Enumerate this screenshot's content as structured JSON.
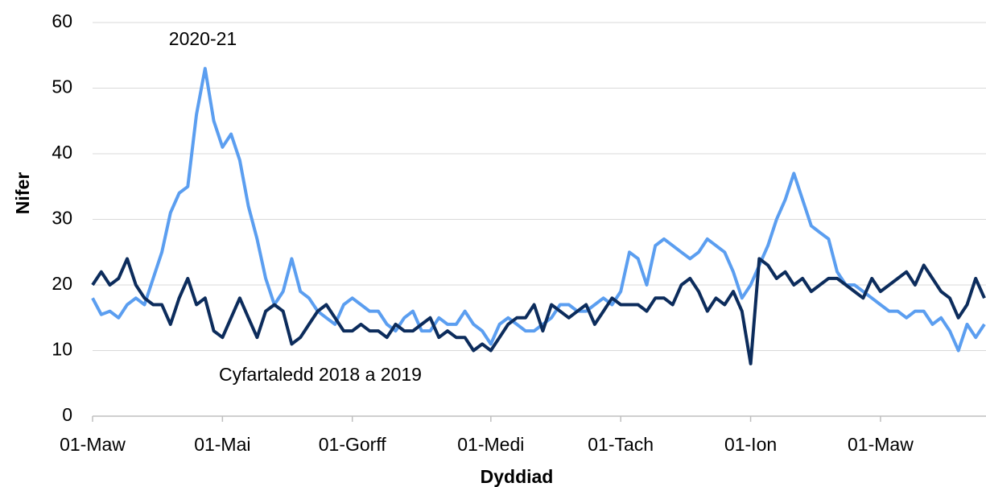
{
  "chart_data": {
    "type": "line",
    "xlabel": "Dyddiad",
    "ylabel": "Nifer",
    "categories": [
      "01-Maw",
      null,
      null,
      null,
      null,
      null,
      null,
      null,
      null,
      null,
      null,
      null,
      null,
      null,
      null,
      "01-Mai",
      null,
      null,
      null,
      null,
      null,
      null,
      null,
      null,
      null,
      null,
      null,
      null,
      null,
      null,
      "01-Gorff",
      null,
      null,
      null,
      null,
      null,
      null,
      null,
      null,
      null,
      null,
      null,
      null,
      null,
      null,
      null,
      "01-Medi",
      null,
      null,
      null,
      null,
      null,
      null,
      null,
      null,
      null,
      null,
      null,
      null,
      null,
      null,
      "01-Tach",
      null,
      null,
      null,
      null,
      null,
      null,
      null,
      null,
      null,
      null,
      null,
      null,
      null,
      null,
      "01-Ion",
      null,
      null,
      null,
      null,
      null,
      null,
      null,
      null,
      null,
      null,
      null,
      null,
      null,
      null,
      "01-Maw",
      null,
      null,
      null,
      null,
      null,
      null,
      null,
      null,
      null,
      null,
      null,
      null
    ],
    "series": [
      {
        "name": "2020-21",
        "color": "#5b9ef0",
        "values": [
          18,
          15.5,
          16,
          15,
          17,
          18,
          17,
          21,
          25,
          31,
          34,
          35,
          46,
          53,
          45,
          41,
          43,
          39,
          32,
          27,
          21,
          17,
          19,
          24,
          19,
          18,
          16,
          15,
          14,
          17,
          18,
          17,
          16,
          16,
          14,
          13,
          15,
          16,
          13,
          13,
          15,
          14,
          14,
          16,
          14,
          13,
          11,
          14,
          15,
          14,
          13,
          13,
          14,
          15,
          17,
          17,
          16,
          16,
          17,
          18,
          17,
          19,
          25,
          24,
          20,
          26,
          27,
          26,
          25,
          24,
          25,
          27,
          26,
          25,
          22,
          18,
          20,
          23,
          26,
          30,
          33,
          37,
          33,
          29,
          28,
          27,
          22,
          20,
          20,
          19,
          18,
          17,
          16,
          16,
          15,
          16,
          16,
          14,
          15,
          13,
          10,
          14,
          12,
          14
        ]
      },
      {
        "name": "Cyfartaledd 2018 a 2019",
        "color": "#0c2c5c",
        "values": [
          20,
          22,
          20,
          21,
          24,
          20,
          18,
          17,
          17,
          14,
          18,
          21,
          17,
          18,
          13,
          12,
          15,
          18,
          15,
          12,
          16,
          17,
          16,
          11,
          12,
          14,
          16,
          17,
          15,
          13,
          13,
          14,
          13,
          13,
          12,
          14,
          13,
          13,
          14,
          15,
          12,
          13,
          12,
          12,
          10,
          11,
          10,
          12,
          14,
          15,
          15,
          17,
          13,
          17,
          16,
          15,
          16,
          17,
          14,
          16,
          18,
          17,
          17,
          17,
          16,
          18,
          18,
          17,
          20,
          21,
          19,
          16,
          18,
          17,
          19,
          16,
          8,
          24,
          23,
          21,
          22,
          20,
          21,
          19,
          20,
          21,
          21,
          20,
          19,
          18,
          21,
          19,
          20,
          21,
          22,
          20,
          23,
          21,
          19,
          18,
          15,
          17,
          21,
          18
        ]
      }
    ],
    "ylim": [
      0,
      60
    ],
    "yticks": [
      0,
      10,
      20,
      30,
      40,
      50,
      60
    ],
    "grid": true
  }
}
